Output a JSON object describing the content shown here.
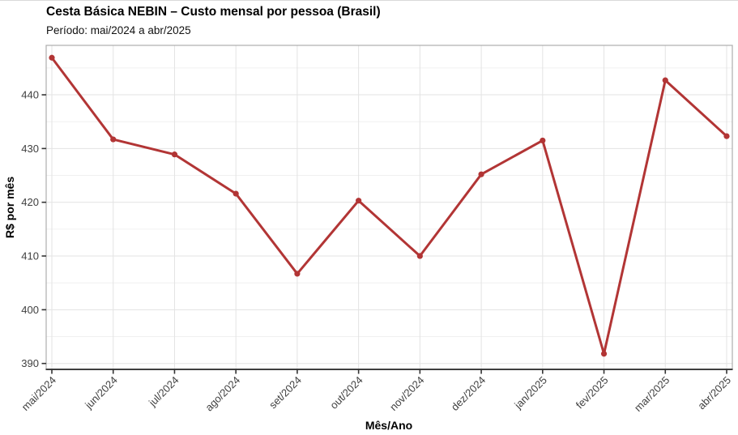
{
  "chart_data": {
    "type": "line",
    "title": "Cesta Básica NEBIN – Custo mensal por pessoa (Brasil)",
    "subtitle": "Período: mai/2024 a abr/2025",
    "xlabel": "Mês/Ano",
    "ylabel": "R$ por mês",
    "categories": [
      "mai/2024",
      "jun/2024",
      "jul/2024",
      "ago/2024",
      "set/2024",
      "out/2024",
      "nov/2024",
      "dez/2024",
      "jan/2025",
      "fev/2025",
      "mar/2025",
      "abr/2025"
    ],
    "values": [
      446.9,
      431.7,
      428.9,
      421.6,
      406.7,
      420.3,
      410.0,
      425.2,
      431.5,
      391.8,
      442.7,
      432.3
    ],
    "ylim": [
      388.9,
      449.2
    ],
    "y_major_ticks": [
      390,
      400,
      410,
      420,
      430,
      440
    ],
    "y_minor_ticks": [
      395,
      405,
      415,
      425,
      435,
      445
    ],
    "grid": "major-and-minor",
    "legend_position": "none",
    "x_tick_angle_deg": 45,
    "colors": {
      "line": "#b23535",
      "point": "#b23535",
      "grid_major": "#e3e3e3",
      "grid_minor": "#f0f0f0",
      "panel_border": "#adadad",
      "axis_line": "#3f3f3f",
      "tick_mark": "#333333",
      "tick_label": "#404040",
      "title_text": "#000000"
    }
  }
}
